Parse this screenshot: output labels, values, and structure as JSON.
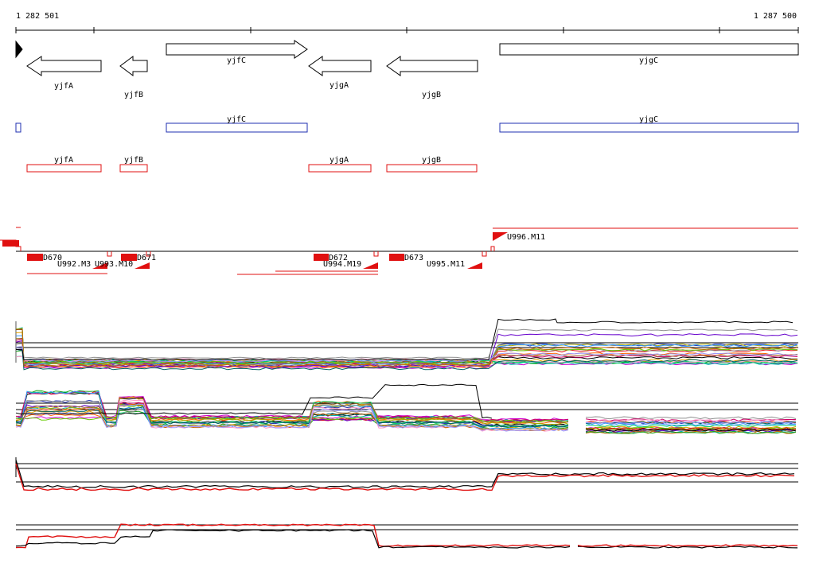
{
  "ruler": {
    "start_label": "1 282 501",
    "end_label": "1 287 500"
  },
  "genes": {
    "annotation": [
      {
        "name": "yjfA",
        "strand": "-"
      },
      {
        "name": "yjfB",
        "strand": "-"
      },
      {
        "name": "yjfC",
        "strand": "+"
      },
      {
        "name": "yjgA",
        "strand": "-"
      },
      {
        "name": "yjgB",
        "strand": "-"
      },
      {
        "name": "yjgC",
        "strand": "+"
      }
    ],
    "blue_track": [
      "yjfC",
      "yjgC"
    ],
    "red_track": [
      "yjfA",
      "yjfB",
      "yjgA",
      "yjgB"
    ]
  },
  "features": {
    "labels": [
      "D670",
      "D671",
      "D672",
      "D673",
      "U992.M3",
      "U993.M10",
      "U994.M19",
      "U995.M11",
      "U996.M11"
    ]
  },
  "colors": {
    "annotation": "#000000",
    "blue_track": "#1f2fb0",
    "red_track": "#e01010",
    "profile_main": "#e01010",
    "profile_alt": "#000000"
  }
}
